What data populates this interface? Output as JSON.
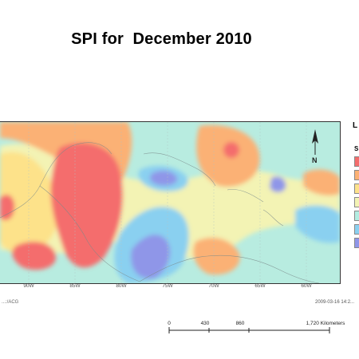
{
  "title": "SPI for  December 2010",
  "map": {
    "longitude_ticks": [
      "90W",
      "85W",
      "80W",
      "75W",
      "70W",
      "65W",
      "60W"
    ],
    "north_arrow_label": "N",
    "footer_left": "...:/ACG",
    "timestamp": "2009-03-16 14:2...",
    "colors": {
      "extremely_dry": "#f46d6d",
      "severely_dry": "#fbb174",
      "moderately_dry": "#fde28a",
      "near_normal": "#f3f3b4",
      "moderately_wet": "#b3ede2",
      "severely_wet": "#8ad0f0",
      "extremely_wet": "#8f96e8"
    }
  },
  "legend": {
    "title": "L",
    "subtitle": "S",
    "swatches": [
      "#f46d6d",
      "#fbb174",
      "#fde28a",
      "#f3f3b4",
      "#b3ede2",
      "#8ad0f0",
      "#8f96e8"
    ]
  },
  "scale": {
    "labels": [
      "0",
      "430",
      "860",
      "1,720 Kilometers"
    ]
  }
}
